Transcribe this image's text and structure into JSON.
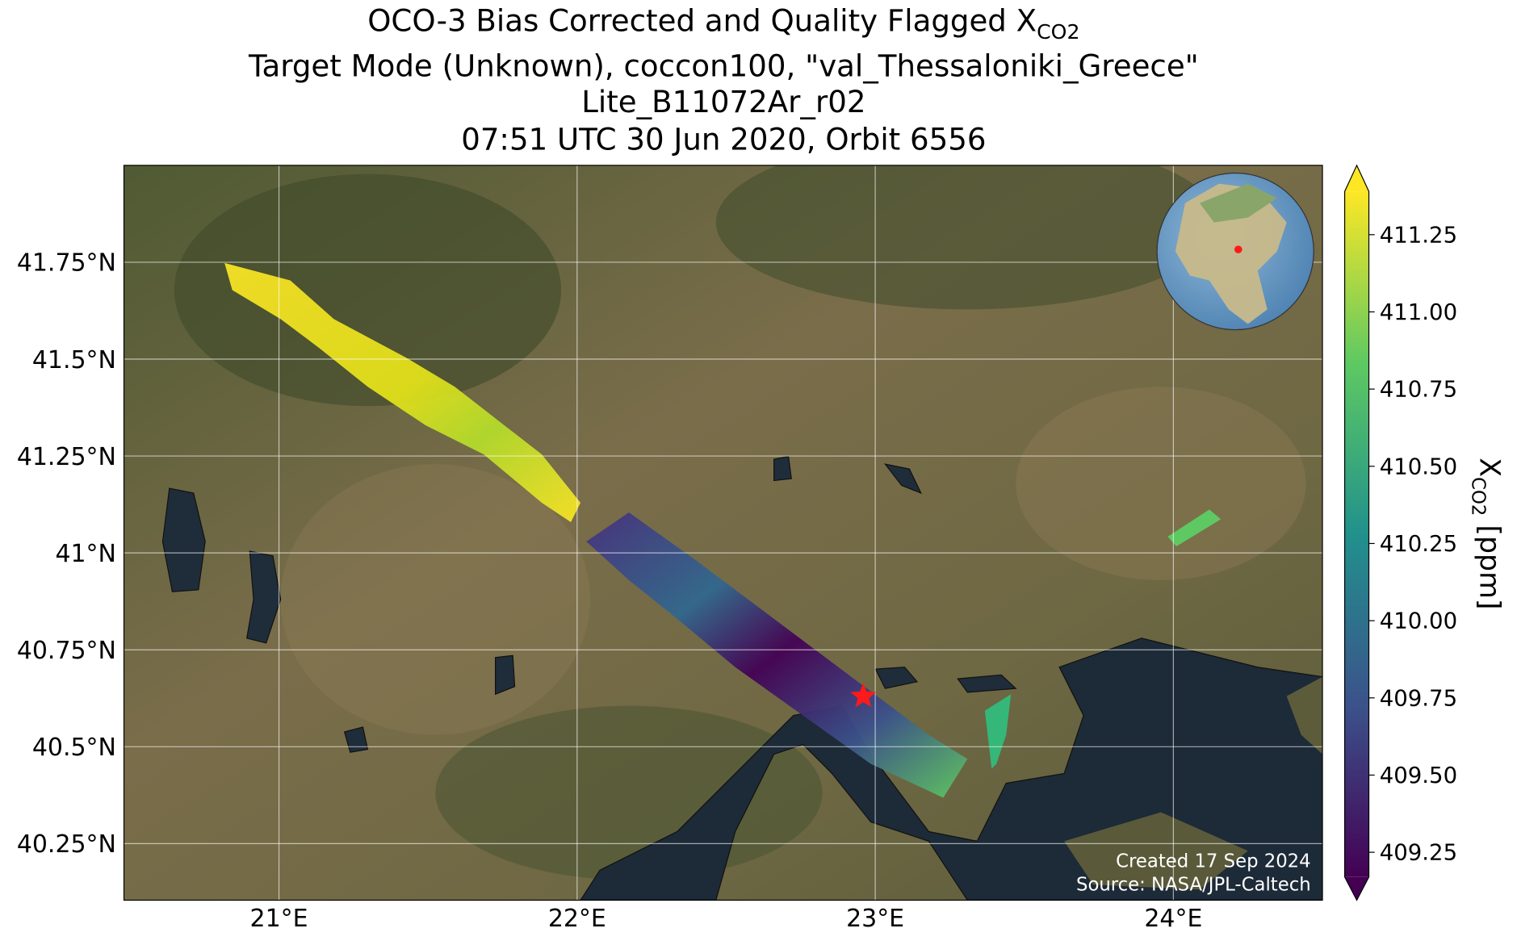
{
  "chart_data": {
    "type": "map",
    "title": {
      "text": "OCO-3 Bias Corrected and Quality Flagged X",
      "subscript": "CO2"
    },
    "subtitle": [
      "Target Mode (Unknown), coccon100, \"val_Thessaloniki_Greece\"",
      "Lite_B11072Ar_r02",
      "07:51 UTC 30 Jun 2020, Orbit 6556"
    ],
    "xlim": [
      20.48,
      24.5
    ],
    "ylim": [
      40.104,
      42.0
    ],
    "xticks": [
      {
        "value": 21,
        "label": "21°E"
      },
      {
        "value": 22,
        "label": "22°E"
      },
      {
        "value": 23,
        "label": "23°E"
      },
      {
        "value": 24,
        "label": "24°E"
      }
    ],
    "yticks": [
      {
        "value": 40.25,
        "label": "40.25°N"
      },
      {
        "value": 40.5,
        "label": "40.5°N"
      },
      {
        "value": 40.75,
        "label": "40.75°N"
      },
      {
        "value": 41,
        "label": "41°N"
      },
      {
        "value": 41.25,
        "label": "41.25°N"
      },
      {
        "value": 41.5,
        "label": "41.5°N"
      },
      {
        "value": 41.75,
        "label": "41.75°N"
      }
    ],
    "grid": true,
    "target": {
      "lon": 22.96,
      "lat": 40.63,
      "color": "#ff1a1a"
    },
    "colorbar": {
      "label": "X",
      "label_subscript": "CO2",
      "label_unit": " [ppm]",
      "clim": [
        409.17,
        411.39
      ],
      "ticks": [
        {
          "value": 409.25,
          "label": "409.25"
        },
        {
          "value": 409.5,
          "label": "409.50"
        },
        {
          "value": 409.75,
          "label": "409.75"
        },
        {
          "value": 410,
          "label": "410.00"
        },
        {
          "value": 410.25,
          "label": "410.25"
        },
        {
          "value": 410.5,
          "label": "410.50"
        },
        {
          "value": 410.75,
          "label": "410.75"
        },
        {
          "value": 411,
          "label": "411.00"
        },
        {
          "value": 411.25,
          "label": "411.25"
        }
      ]
    },
    "annotations": [
      "Created 17 Sep 2024",
      "Source: NASA/JPL-Caltech"
    ]
  }
}
